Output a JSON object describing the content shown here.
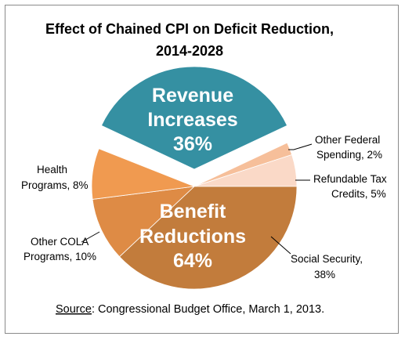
{
  "chart_data": {
    "type": "pie",
    "title_line1": "Effect of Chained CPI on Deficit Reduction,",
    "title_line2": "2014-2028",
    "groups": [
      {
        "name_line1": "Revenue",
        "name_line2": "Increases",
        "value_label": "36%",
        "value": 36,
        "color": "#3590a2",
        "exploded": true
      },
      {
        "name_line1": "Benefit",
        "name_line2": "Reductions",
        "value_label": "64%",
        "value": 64,
        "color": "#c97f3f",
        "exploded": false
      }
    ],
    "slices": [
      {
        "group": 1,
        "label_line1": "Other Federal",
        "label_line2": "Spending, 2%",
        "value": 2,
        "color": "#f6bf9a"
      },
      {
        "group": 1,
        "label_line1": "Refundable Tax",
        "label_line2": "Credits, 5%",
        "value": 5,
        "color": "#fad9c7"
      },
      {
        "group": 1,
        "label_line1": "Social Security,",
        "label_line2": "38%",
        "value": 38,
        "color": "#c27c3c"
      },
      {
        "group": 1,
        "label_line1": "Other COLA",
        "label_line2": "Programs, 10%",
        "value": 10,
        "color": "#de8b45"
      },
      {
        "group": 1,
        "label_line1": "Health",
        "label_line2": "Programs, 8%",
        "value": 8,
        "color": "#f09a50"
      }
    ],
    "source_prefix": "Source",
    "source_text": ": Congressional Budget Office, March 1, 2013."
  }
}
